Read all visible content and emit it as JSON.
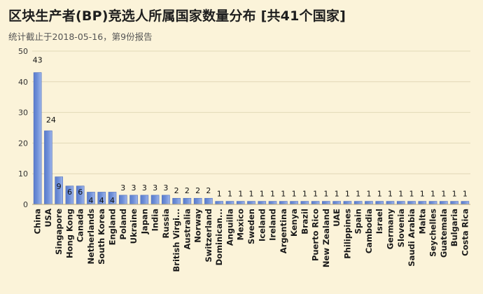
{
  "title": "区块生产者(BP)竞选人所属国家数量分布 [共41个国家]",
  "subtitle": "统计截止于2018-05-16，第9份报告",
  "colors": {
    "bar": "#6e8fd8",
    "bar_edge": "#4a6cc0",
    "grid": "#e2d8b8",
    "background": "#fbf3d9"
  },
  "chart_data": {
    "type": "bar",
    "title": "区块生产者(BP)竞选人所属国家数量分布 [共41个国家]",
    "subtitle": "统计截止于2018-05-16，第9份报告",
    "xlabel": "",
    "ylabel": "",
    "ylim": [
      0,
      50
    ],
    "yticks": [
      0,
      10,
      20,
      30,
      40,
      50
    ],
    "grid": true,
    "legend": "none",
    "categories": [
      "China",
      "USA",
      "Singapore",
      "Hong Kong",
      "Canada",
      "Netherlands",
      "South Korea",
      "England",
      "Poland",
      "Ukraine",
      "Japan",
      "India",
      "Russia",
      "British Virgi...",
      "Australia",
      "Norway",
      "Switzerland",
      "Dominican...",
      "Anguilla",
      "Mexico",
      "Sweden",
      "Iceland",
      "Ireland",
      "Argentina",
      "Kenya",
      "Brazil",
      "Puerto Rico",
      "New Zealand",
      "UAE",
      "Philippines",
      "Spain",
      "Cambodia",
      "Israel",
      "Germany",
      "Slovenia",
      "Saudi Arabia",
      "Malta",
      "Seychelles",
      "Guatemala",
      "Bulgaria",
      "Costa Rica"
    ],
    "values": [
      43,
      24,
      9,
      6,
      6,
      4,
      4,
      4,
      3,
      3,
      3,
      3,
      3,
      2,
      2,
      2,
      2,
      1,
      1,
      1,
      1,
      1,
      1,
      1,
      1,
      1,
      1,
      1,
      1,
      1,
      1,
      1,
      1,
      1,
      1,
      1,
      1,
      1,
      1,
      1,
      1
    ],
    "data_labels": [
      "43",
      "24",
      "9",
      "6",
      "6",
      "4",
      "4",
      "4",
      "3",
      "3",
      "3",
      "3",
      "3",
      "2",
      "2",
      "2",
      "2",
      "1",
      "1",
      "1",
      "1",
      "1",
      "1",
      "1",
      "1",
      "1",
      "1",
      "1",
      "1",
      "1",
      "1",
      "1",
      "1",
      "1",
      "1",
      "1",
      "1",
      "1",
      "1",
      "1",
      "1"
    ]
  }
}
